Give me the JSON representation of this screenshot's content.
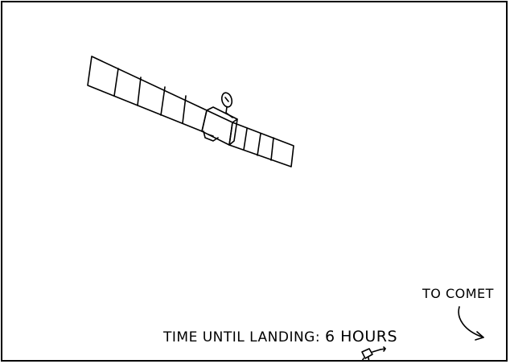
{
  "caption": {
    "prefix": "TIME UNTIL LANDING:",
    "countdown": "6 HOURS"
  },
  "direction_label": "TO COMET",
  "colors": {
    "ink": "#000000",
    "background": "#ffffff"
  }
}
